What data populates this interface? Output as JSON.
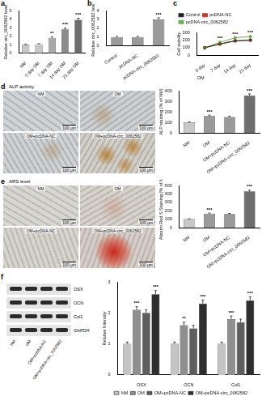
{
  "panel_labels": [
    "a",
    "b",
    "c",
    "d",
    "e",
    "f"
  ],
  "chart_data": [
    {
      "type": "bar",
      "y_label": "Relative circ_0062582 level",
      "categories": [
        "NM",
        "0 day OM",
        "7 day OM",
        "14 day OM",
        "21 day OM"
      ],
      "values": [
        1.0,
        1.05,
        1.8,
        2.8,
        3.9
      ],
      "errors": [
        0.05,
        0.08,
        0.12,
        0.15,
        0.2
      ],
      "colors": [
        "#c8c8c8",
        "#c8c8c8",
        "#a8a8a8",
        "#8c8c8c",
        "#6e6e6e"
      ],
      "ylim": [
        0,
        5
      ],
      "yticks": [
        0,
        1,
        2,
        3,
        4,
        5
      ],
      "grid": false,
      "annotations": [
        {
          "text": "**",
          "category": "7 day OM"
        },
        {
          "text": "***",
          "category": "14 day OM"
        },
        {
          "text": "***",
          "category": "21 day OM"
        }
      ]
    },
    {
      "type": "bar",
      "y_label": "Relative circ_0062582 levels",
      "categories": [
        "Control",
        "pcDNA-NC",
        "pcDNA-circ_0062582"
      ],
      "values": [
        1.0,
        1.0,
        3.0
      ],
      "errors": [
        0.06,
        0.07,
        0.18
      ],
      "colors": [
        "#9a9a9a",
        "#9a9a9a",
        "#9a9a9a"
      ],
      "ylim": [
        0,
        4
      ],
      "yticks": [
        0,
        1,
        2,
        3,
        4
      ],
      "grid": false,
      "annotations": [
        {
          "text": "***",
          "category": "pcDNA-circ_0062582"
        }
      ]
    },
    {
      "type": "line",
      "y_label": "Cell viability",
      "x_label": "OM",
      "categories": [
        "0 day",
        "7 day",
        "14 day",
        "21 day"
      ],
      "series": [
        {
          "name": "Control",
          "color": "#222222",
          "values": [
            100,
            150,
            190,
            200
          ],
          "errors": [
            4,
            6,
            7,
            7
          ]
        },
        {
          "name": "pcDNA-NC",
          "color": "#c0392b",
          "values": [
            100,
            148,
            188,
            198
          ],
          "errors": [
            4,
            6,
            7,
            7
          ]
        },
        {
          "name": "pcDNA-circ_0062582",
          "color": "#6ab04c",
          "values": [
            100,
            170,
            230,
            245
          ],
          "errors": [
            4,
            7,
            8,
            8
          ]
        }
      ],
      "ylim": [
        0,
        300
      ],
      "yticks": [
        0,
        100,
        200,
        300
      ],
      "grid": false,
      "legend": "top-left",
      "annotations": [
        {
          "text": "***",
          "category": "7 day"
        },
        {
          "text": "***",
          "category": "14 day"
        },
        {
          "text": "***",
          "category": "21 day"
        }
      ]
    },
    {
      "type": "bar",
      "y_label": "ALP staining (% of NM)",
      "categories": [
        "NM",
        "OM",
        "OM+pcDNA-NC",
        "OM+pcDNA-circ_0062582"
      ],
      "values": [
        100,
        160,
        150,
        355
      ],
      "errors": [
        5,
        8,
        8,
        15
      ],
      "colors": [
        "#c8c8c8",
        "#9a9a9a",
        "#9a9a9a",
        "#6e6e6e"
      ],
      "ylim": [
        0,
        400
      ],
      "yticks": [
        0,
        100,
        200,
        300,
        400
      ],
      "grid": false,
      "annotations": [
        {
          "text": "***",
          "category": "OM"
        },
        {
          "text": "***",
          "category": "OM+pcDNA-circ_0062582"
        }
      ]
    },
    {
      "type": "bar",
      "y_label": "Alizarin Red S Staining (% of NM)",
      "categories": [
        "NM",
        "OM",
        "OM+pcDNA-NC",
        "OM+pcDNA-circ_0062582"
      ],
      "values": [
        100,
        165,
        160,
        430
      ],
      "errors": [
        5,
        8,
        8,
        15
      ],
      "colors": [
        "#c8c8c8",
        "#9a9a9a",
        "#9a9a9a",
        "#6e6e6e"
      ],
      "ylim": [
        0,
        500
      ],
      "yticks": [
        0,
        100,
        200,
        300,
        400,
        500
      ],
      "grid": false,
      "annotations": [
        {
          "text": "***",
          "category": "OM"
        },
        {
          "text": "***",
          "category": "OM+pcDNA-circ_0062582"
        }
      ]
    },
    {
      "type": "bar",
      "y_label": "Relative Intensity",
      "categories": [
        "OSX",
        "OCN",
        "Col1"
      ],
      "series": [
        {
          "name": "NM",
          "color": "#c4c4c4",
          "values": [
            1.0,
            1.0,
            1.0
          ],
          "errors": [
            0.06,
            0.06,
            0.06
          ]
        },
        {
          "name": "OM",
          "color": "#8f8f8f",
          "values": [
            2.1,
            1.6,
            1.8
          ],
          "errors": [
            0.1,
            0.1,
            0.1
          ]
        },
        {
          "name": "OM+pcDNA-NC",
          "color": "#5e5e5e",
          "values": [
            2.0,
            1.5,
            1.7
          ],
          "errors": [
            0.1,
            0.1,
            0.1
          ]
        },
        {
          "name": "OM+pcDNA-circ_0062582",
          "color": "#2e2e2e",
          "values": [
            2.6,
            2.3,
            2.4
          ],
          "errors": [
            0.12,
            0.12,
            0.12
          ]
        }
      ],
      "ylim": [
        0,
        3
      ],
      "yticks": [
        0,
        1,
        2,
        3
      ],
      "grid": false,
      "legend": "bottom",
      "annotations": [
        {
          "text": "***",
          "category": "OSX",
          "series": "OM"
        },
        {
          "text": "***",
          "category": "OSX",
          "series": "OM+pcDNA-circ_0062582"
        },
        {
          "text": "**",
          "category": "OCN",
          "series": "OM"
        },
        {
          "text": "***",
          "category": "OCN",
          "series": "OM+pcDNA-circ_0062582"
        },
        {
          "text": "***",
          "category": "Col1",
          "series": "OM"
        },
        {
          "text": "***",
          "category": "Col1",
          "series": "OM+pcDNA-circ_0062582"
        }
      ]
    }
  ],
  "micrographs": {
    "d": {
      "title": "ALP activity",
      "labels": [
        "NM",
        "OM",
        "OM+pcDNA-NC",
        "OM+pcDNA-circ_0062582"
      ],
      "scale_bar": "100 μm"
    },
    "e": {
      "title": "ARS level",
      "labels": [
        "NM",
        "OM",
        "OM+pcDNA-NC",
        "OM+pcDNA-circ_0062582"
      ],
      "scale_bar": "100 μm"
    }
  },
  "blot": {
    "rows": [
      "OSX",
      "OCN",
      "Col1",
      "GAPDH"
    ],
    "lanes": [
      "NM",
      "OM",
      "OM+pcDNA-NC",
      "OM+pcDNA-circ_0062582"
    ]
  }
}
